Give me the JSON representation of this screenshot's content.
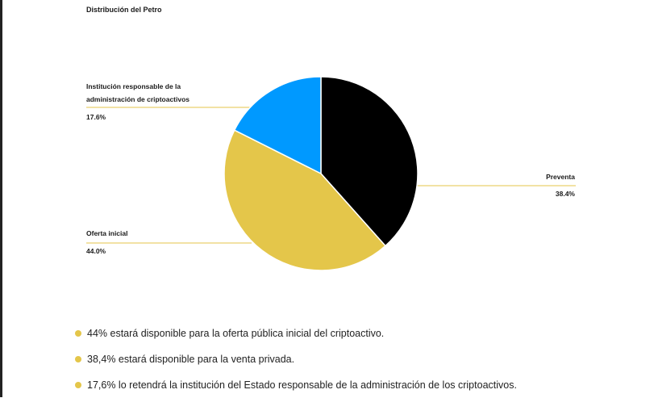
{
  "chart_data": {
    "type": "pie",
    "title": "Distribución del Petro",
    "slices": [
      {
        "label": "Preventa",
        "value": 38.4,
        "display": "38.4%",
        "color": "#000000"
      },
      {
        "label": "Oferta inicial",
        "value": 44.0,
        "display": "44.0%",
        "color": "#e4c64a"
      },
      {
        "label": "Institución responsable de la administración de criptoactivos",
        "value": 17.6,
        "display": "17.6%",
        "color": "#0099ff"
      }
    ],
    "leader_line_color": "#e4c64a"
  },
  "bullets": [
    "44% estará disponible para la oferta pública inicial del criptoactivo.",
    "38,4% estará disponible para la venta privada.",
    "17,6% lo retendrá la institución del Estado responsable de la administración de los criptoactivos."
  ]
}
